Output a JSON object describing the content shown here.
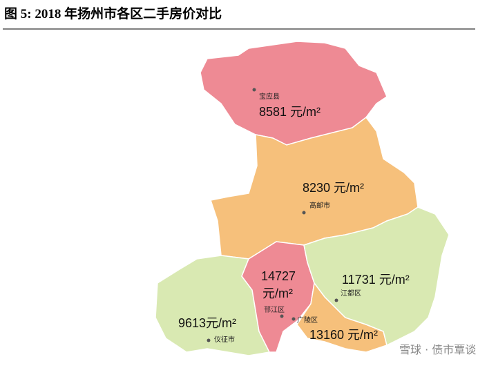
{
  "header": {
    "title": "图 5:  2018 年扬州市各区二手房价对比"
  },
  "map": {
    "regions": [
      {
        "name": "宝应县",
        "price_lines": [
          "8581 元/m²"
        ],
        "color": "#ee8a94"
      },
      {
        "name": "高邮市",
        "price_lines": [
          "8230 元/m²"
        ],
        "color": "#f6c07b"
      },
      {
        "name": "仪征市",
        "price_lines": [
          "9613元/m²"
        ],
        "color": "#d9e9b2"
      },
      {
        "name": "邗江区",
        "price_lines": [
          "14727",
          "元/m²"
        ],
        "color": "#ee8a94"
      },
      {
        "name": "广陵区",
        "price_lines": [
          "13160 元/m²"
        ],
        "color": "#f6c07b"
      },
      {
        "name": "江都区",
        "price_lines": [
          "11731 元/m²"
        ],
        "color": "#d9e9b2"
      }
    ]
  },
  "watermark": "雪球 · 债市覃谈"
}
